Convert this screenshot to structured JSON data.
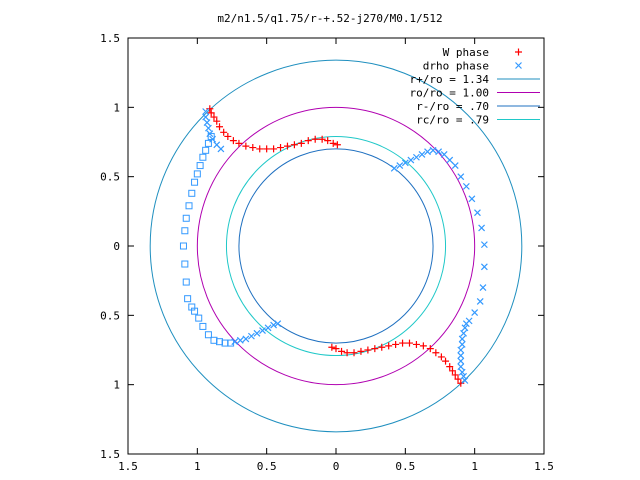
{
  "chart_data": {
    "type": "scatter",
    "title": "m2/n1.5/q1.75/r-+.52-j270/M0.1/512",
    "xlabel": "",
    "ylabel": "",
    "xlim": [
      -1.5,
      1.5
    ],
    "ylim": [
      -1.5,
      1.5
    ],
    "aspect": "equal",
    "grid": false,
    "legend_position": "top-right",
    "x_ticks": [
      {
        "value": -1.5,
        "label": "1.5"
      },
      {
        "value": -1.0,
        "label": "1"
      },
      {
        "value": -0.5,
        "label": "0.5"
      },
      {
        "value": 0.0,
        "label": "0"
      },
      {
        "value": 0.5,
        "label": "0.5"
      },
      {
        "value": 1.0,
        "label": "1"
      },
      {
        "value": 1.5,
        "label": "1.5"
      }
    ],
    "y_ticks": [
      {
        "value": 1.5,
        "label": "1.5"
      },
      {
        "value": 1.0,
        "label": "1"
      },
      {
        "value": 0.5,
        "label": "0.5"
      },
      {
        "value": 0.0,
        "label": "0"
      },
      {
        "value": -0.5,
        "label": "0.5"
      },
      {
        "value": -1.0,
        "label": "1"
      },
      {
        "value": -1.5,
        "label": "1.5"
      }
    ],
    "series": [
      {
        "name": "W phase",
        "marker": "plus",
        "color": "#ff0000",
        "points": [
          [
            -0.91,
            0.99
          ],
          [
            -0.9,
            0.96
          ],
          [
            -0.88,
            0.93
          ],
          [
            -0.86,
            0.9
          ],
          [
            -0.84,
            0.86
          ],
          [
            -0.81,
            0.82
          ],
          [
            -0.78,
            0.79
          ],
          [
            -0.74,
            0.76
          ],
          [
            -0.7,
            0.74
          ],
          [
            -0.65,
            0.72
          ],
          [
            -0.6,
            0.71
          ],
          [
            -0.55,
            0.7
          ],
          [
            -0.5,
            0.7
          ],
          [
            -0.45,
            0.7
          ],
          [
            -0.4,
            0.71
          ],
          [
            -0.35,
            0.72
          ],
          [
            -0.3,
            0.73
          ],
          [
            -0.25,
            0.74
          ],
          [
            -0.2,
            0.76
          ],
          [
            -0.15,
            0.77
          ],
          [
            -0.1,
            0.77
          ],
          [
            -0.06,
            0.76
          ],
          [
            -0.02,
            0.74
          ],
          [
            0.01,
            0.73
          ],
          [
            -0.03,
            -0.73
          ],
          [
            0.0,
            -0.74
          ],
          [
            0.04,
            -0.76
          ],
          [
            0.08,
            -0.77
          ],
          [
            0.13,
            -0.77
          ],
          [
            0.18,
            -0.76
          ],
          [
            0.23,
            -0.75
          ],
          [
            0.28,
            -0.74
          ],
          [
            0.33,
            -0.73
          ],
          [
            0.38,
            -0.72
          ],
          [
            0.43,
            -0.71
          ],
          [
            0.48,
            -0.7
          ],
          [
            0.53,
            -0.7
          ],
          [
            0.58,
            -0.71
          ],
          [
            0.63,
            -0.72
          ],
          [
            0.68,
            -0.74
          ],
          [
            0.72,
            -0.77
          ],
          [
            0.76,
            -0.8
          ],
          [
            0.79,
            -0.83
          ],
          [
            0.82,
            -0.87
          ],
          [
            0.84,
            -0.9
          ],
          [
            0.86,
            -0.93
          ],
          [
            0.88,
            -0.96
          ],
          [
            0.9,
            -0.99
          ]
        ]
      },
      {
        "name": "drho phase",
        "marker": "cross",
        "color": "#3399ff",
        "points": [
          [
            -0.94,
            0.97
          ],
          [
            -0.94,
            0.93
          ],
          [
            -0.93,
            0.89
          ],
          [
            -0.92,
            0.85
          ],
          [
            -0.91,
            0.81
          ],
          [
            -0.89,
            0.77
          ],
          [
            -0.86,
            0.73
          ],
          [
            -0.83,
            0.7
          ],
          [
            0.42,
            0.56
          ],
          [
            0.46,
            0.58
          ],
          [
            0.5,
            0.6
          ],
          [
            0.54,
            0.62
          ],
          [
            0.58,
            0.64
          ],
          [
            0.62,
            0.66
          ],
          [
            0.66,
            0.68
          ],
          [
            0.7,
            0.69
          ],
          [
            0.74,
            0.68
          ],
          [
            0.78,
            0.66
          ],
          [
            0.82,
            0.62
          ],
          [
            0.86,
            0.58
          ],
          [
            0.9,
            0.5
          ],
          [
            0.94,
            0.43
          ],
          [
            0.98,
            0.34
          ],
          [
            1.02,
            0.24
          ],
          [
            1.05,
            0.13
          ],
          [
            1.07,
            0.01
          ],
          [
            1.07,
            -0.15
          ],
          [
            1.06,
            -0.3
          ],
          [
            1.04,
            -0.4
          ],
          [
            1.0,
            -0.48
          ],
          [
            0.96,
            -0.54
          ],
          [
            -0.73,
            -0.69
          ],
          [
            -0.69,
            -0.68
          ],
          [
            -0.65,
            -0.67
          ],
          [
            -0.61,
            -0.65
          ],
          [
            -0.57,
            -0.63
          ],
          [
            -0.53,
            -0.61
          ],
          [
            -0.49,
            -0.59
          ],
          [
            -0.45,
            -0.57
          ],
          [
            -0.42,
            -0.56
          ],
          [
            0.94,
            -0.56
          ],
          [
            0.93,
            -0.59
          ],
          [
            0.92,
            -0.63
          ],
          [
            0.91,
            -0.67
          ],
          [
            0.91,
            -0.71
          ],
          [
            0.9,
            -0.75
          ],
          [
            0.9,
            -0.79
          ],
          [
            0.9,
            -0.83
          ],
          [
            0.9,
            -0.87
          ],
          [
            0.91,
            -0.91
          ],
          [
            0.92,
            -0.94
          ],
          [
            0.93,
            -0.97
          ]
        ]
      },
      {
        "name": "",
        "marker": "square",
        "color": "#3399ff",
        "points": [
          [
            -0.9,
            0.79
          ],
          [
            -0.92,
            0.74
          ],
          [
            -0.94,
            0.69
          ],
          [
            -0.96,
            0.64
          ],
          [
            -0.98,
            0.58
          ],
          [
            -1.0,
            0.52
          ],
          [
            -1.02,
            0.46
          ],
          [
            -1.04,
            0.38
          ],
          [
            -1.06,
            0.29
          ],
          [
            -1.08,
            0.2
          ],
          [
            -1.09,
            0.11
          ],
          [
            -1.1,
            0.0
          ],
          [
            -1.09,
            -0.13
          ],
          [
            -1.08,
            -0.26
          ],
          [
            -1.07,
            -0.38
          ],
          [
            -1.04,
            -0.44
          ],
          [
            -1.02,
            -0.47
          ],
          [
            -0.99,
            -0.52
          ],
          [
            -0.96,
            -0.58
          ],
          [
            -0.92,
            -0.64
          ],
          [
            -0.88,
            -0.68
          ],
          [
            -0.84,
            -0.69
          ],
          [
            -0.8,
            -0.7
          ],
          [
            -0.76,
            -0.7
          ]
        ]
      }
    ],
    "circles": [
      {
        "name": "r+/ro = 1.34",
        "radius": 1.34,
        "color": "#1f8fbf"
      },
      {
        "name": "ro/ro = 1.00",
        "radius": 1.0,
        "color": "#b000b0"
      },
      {
        "name": "r-/ro = .70",
        "radius": 0.7,
        "color": "#1f70c0"
      },
      {
        "name": "rc/ro = .79",
        "radius": 0.79,
        "color": "#20c8c8"
      }
    ]
  }
}
